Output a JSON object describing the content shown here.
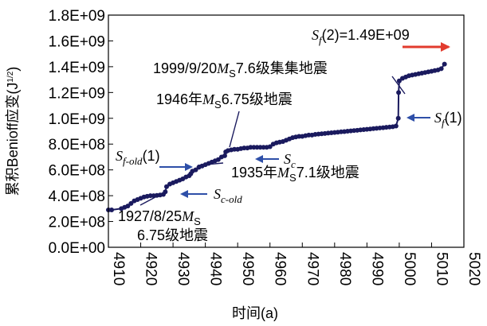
{
  "chart_data": {
    "type": "line",
    "xlabel": "时间(a)",
    "ylabel": "累积Benioff应变(J",
    "ylabel_sup": "1/2",
    "ylabel_close": ")",
    "xlim": [
      4910,
      5020
    ],
    "ylim": [
      0,
      1800000000
    ],
    "x_ticks": [
      "4910",
      "4920",
      "4930",
      "4940",
      "4950",
      "4960",
      "4970",
      "4980",
      "4990",
      "5000",
      "5010",
      "5020"
    ],
    "y_ticks": [
      "0.0E+00",
      "2.0E+08",
      "4.0E+08",
      "6.0E+08",
      "8.0E+08",
      "1.0E+09",
      "1.2E+09",
      "1.4E+09",
      "1.6E+09",
      "1.8E+09"
    ],
    "series": [
      {
        "color": "#1a1a5e",
        "x": [
          4910,
          4911,
          4914,
          4915,
          4916,
          4917,
          4918,
          4919,
          4920,
          4921,
          4922,
          4923,
          4924,
          4925,
          4926,
          4927,
          4927.6,
          4928,
          4929,
          4930,
          4931,
          4932,
          4933,
          4934,
          4935,
          4935.5,
          4936,
          4937,
          4938,
          4939,
          4940,
          4941,
          4942,
          4943,
          4944,
          4945,
          4946,
          4946.3,
          4947,
          4948,
          4949,
          4950,
          4951,
          4952,
          4953,
          4954,
          4955,
          4956,
          4957,
          4958,
          4959,
          4960,
          4961,
          4962,
          4963,
          4964,
          4965,
          4966,
          4967,
          4968,
          4969,
          4970,
          4971,
          4972,
          4973,
          4974,
          4975,
          4976,
          4977,
          4978,
          4979,
          4980,
          4981,
          4982,
          4983,
          4984,
          4985,
          4986,
          4987,
          4988,
          4989,
          4990,
          4991,
          4992,
          4993,
          4994,
          4995,
          4996,
          4997,
          4998,
          4999,
          4999.7,
          4999.8,
          5000,
          5001,
          5002,
          5003,
          5004,
          5005,
          5006,
          5007,
          5008,
          5009,
          5010,
          5011,
          5012,
          5013,
          5014
        ],
        "y": [
          290000000,
          290000000,
          300000000,
          310000000,
          320000000,
          340000000,
          360000000,
          370000000,
          380000000,
          390000000,
          395000000,
          400000000,
          400000000,
          402000000,
          405000000,
          410000000,
          430000000,
          470000000,
          490000000,
          500000000,
          510000000,
          520000000,
          530000000,
          545000000,
          555000000,
          570000000,
          590000000,
          600000000,
          620000000,
          630000000,
          640000000,
          650000000,
          660000000,
          670000000,
          680000000,
          700000000,
          710000000,
          740000000,
          750000000,
          755000000,
          760000000,
          760000000,
          765000000,
          770000000,
          770000000,
          775000000,
          775000000,
          775000000,
          775000000,
          775000000,
          775000000,
          780000000,
          800000000,
          810000000,
          815000000,
          820000000,
          830000000,
          840000000,
          850000000,
          855000000,
          860000000,
          860000000,
          865000000,
          870000000,
          870000000,
          875000000,
          878000000,
          880000000,
          882000000,
          885000000,
          888000000,
          890000000,
          892000000,
          895000000,
          897000000,
          900000000,
          902000000,
          905000000,
          907000000,
          910000000,
          912000000,
          915000000,
          917000000,
          920000000,
          922000000,
          925000000,
          927000000,
          930000000,
          932000000,
          935000000,
          940000000,
          1000000000,
          1200000000,
          1290000000,
          1310000000,
          1320000000,
          1330000000,
          1335000000,
          1340000000,
          1345000000,
          1350000000,
          1355000000,
          1360000000,
          1365000000,
          1370000000,
          1375000000,
          1385000000,
          1420000000
        ]
      }
    ],
    "annotations": [
      {
        "parts": [
          {
            "t": "S",
            "i": true
          },
          {
            "t": "f",
            "i": true,
            "sub": true
          },
          {
            "t": "(2)=1.49E+09"
          }
        ]
      },
      {
        "parts": [
          {
            "t": "1999/9/20"
          },
          {
            "t": "M",
            "i": true
          },
          {
            "t": "S",
            "sub": true
          },
          {
            "t": "7.6级集集地震"
          }
        ]
      },
      {
        "parts": [
          {
            "t": "1946年"
          },
          {
            "t": "M",
            "i": true
          },
          {
            "t": "S",
            "sub": true
          },
          {
            "t": "6.75级地震"
          }
        ]
      },
      {
        "parts": [
          {
            "t": "S",
            "i": true
          },
          {
            "t": "f",
            "i": true,
            "sub": true
          },
          {
            "t": "(1)"
          }
        ]
      },
      {
        "parts": [
          {
            "t": "S",
            "i": true
          },
          {
            "t": "f-old",
            "i": true,
            "sub": true
          },
          {
            "t": "(1)"
          }
        ]
      },
      {
        "parts": [
          {
            "t": "S",
            "i": true
          },
          {
            "t": "c",
            "i": true,
            "sub": true
          }
        ]
      },
      {
        "parts": [
          {
            "t": "1935年"
          },
          {
            "t": "M",
            "i": true
          },
          {
            "t": "S",
            "sub": true
          },
          {
            "t": "7.1级地震"
          }
        ]
      },
      {
        "parts": [
          {
            "t": "S",
            "i": true
          },
          {
            "t": "c-old",
            "i": true,
            "sub": true
          }
        ]
      },
      {
        "parts": [
          {
            "t": "1927/8/25"
          },
          {
            "t": "M",
            "i": true
          },
          {
            "t": "S",
            "sub": true
          }
        ]
      },
      {
        "parts": [
          {
            "t": "6.75级地震"
          }
        ]
      }
    ],
    "colors": {
      "line": "#1a1a5e",
      "arrow_blue": "#2e4fa8",
      "arrow_red": "#e23b2e",
      "axis": "#000000"
    }
  }
}
